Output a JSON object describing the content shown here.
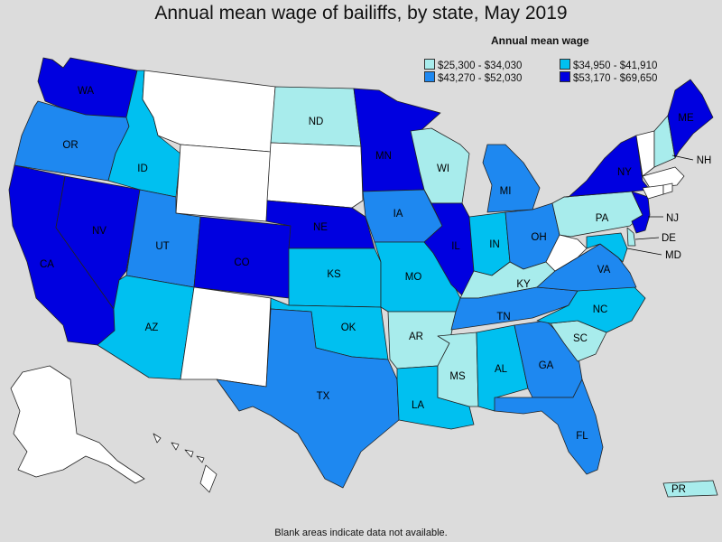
{
  "title": "Annual mean wage of bailiffs, by state, May 2019",
  "legend": {
    "title": "Annual mean wage",
    "items": [
      {
        "label": "$25,300 - $34,030",
        "color": "#a8ecec"
      },
      {
        "label": "$34,950 - $41,910",
        "color": "#00c0f0"
      },
      {
        "label": "$43,270 - $52,030",
        "color": "#1e88f0"
      },
      {
        "label": "$53,170 - $69,650",
        "color": "#0000e0"
      }
    ]
  },
  "colors": {
    "tier1": "#a8ecec",
    "tier2": "#00c0f0",
    "tier3": "#1e88f0",
    "tier4": "#0000e0",
    "nodata": "#ffffff"
  },
  "footer": "Blank areas indicate data not available.",
  "states": {
    "WA": {
      "label": "WA",
      "tier": 4
    },
    "OR": {
      "label": "OR",
      "tier": 3
    },
    "CA": {
      "label": "CA",
      "tier": 4
    },
    "NV": {
      "label": "NV",
      "tier": 4
    },
    "ID": {
      "label": "ID",
      "tier": 2
    },
    "MT": {
      "label": "",
      "tier": 0
    },
    "WY": {
      "label": "",
      "tier": 0
    },
    "UT": {
      "label": "UT",
      "tier": 3
    },
    "AZ": {
      "label": "AZ",
      "tier": 2
    },
    "CO": {
      "label": "CO",
      "tier": 4
    },
    "NM": {
      "label": "",
      "tier": 0
    },
    "ND": {
      "label": "ND",
      "tier": 1
    },
    "SD": {
      "label": "",
      "tier": 0
    },
    "NE": {
      "label": "NE",
      "tier": 4
    },
    "KS": {
      "label": "KS",
      "tier": 2
    },
    "OK": {
      "label": "OK",
      "tier": 2
    },
    "TX": {
      "label": "TX",
      "tier": 3
    },
    "MN": {
      "label": "MN",
      "tier": 4
    },
    "IA": {
      "label": "IA",
      "tier": 3
    },
    "MO": {
      "label": "MO",
      "tier": 2
    },
    "AR": {
      "label": "AR",
      "tier": 1
    },
    "LA": {
      "label": "LA",
      "tier": 2
    },
    "WI": {
      "label": "WI",
      "tier": 1
    },
    "IL": {
      "label": "IL",
      "tier": 4
    },
    "MI": {
      "label": "MI",
      "tier": 3
    },
    "IN": {
      "label": "IN",
      "tier": 2
    },
    "OH": {
      "label": "OH",
      "tier": 3
    },
    "KY": {
      "label": "KY",
      "tier": 1
    },
    "TN": {
      "label": "TN",
      "tier": 3
    },
    "MS": {
      "label": "MS",
      "tier": 1
    },
    "AL": {
      "label": "AL",
      "tier": 2
    },
    "GA": {
      "label": "GA",
      "tier": 3
    },
    "FL": {
      "label": "FL",
      "tier": 3
    },
    "SC": {
      "label": "SC",
      "tier": 1
    },
    "NC": {
      "label": "NC",
      "tier": 2
    },
    "VA": {
      "label": "VA",
      "tier": 3
    },
    "WV": {
      "label": "",
      "tier": 0
    },
    "PA": {
      "label": "PA",
      "tier": 1
    },
    "NY": {
      "label": "NY",
      "tier": 4
    },
    "NJ": {
      "label": "NJ",
      "tier": 4
    },
    "DE": {
      "label": "DE",
      "tier": 1
    },
    "MD": {
      "label": "MD",
      "tier": 2
    },
    "NH": {
      "label": "NH",
      "tier": 1
    },
    "VT": {
      "label": "",
      "tier": 0
    },
    "ME": {
      "label": "ME",
      "tier": 4
    },
    "MA": {
      "label": "",
      "tier": 0
    },
    "CT": {
      "label": "",
      "tier": 0
    },
    "RI": {
      "label": "",
      "tier": 0
    },
    "AK": {
      "label": "",
      "tier": 0
    },
    "HI": {
      "label": "",
      "tier": 0
    },
    "PR": {
      "label": "PR",
      "tier": 1
    }
  }
}
